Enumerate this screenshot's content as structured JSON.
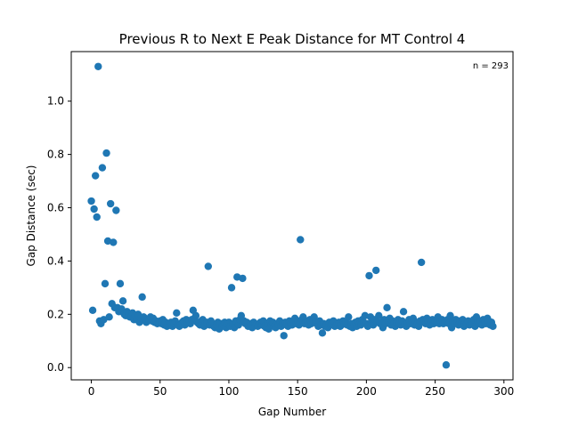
{
  "chart_data": {
    "type": "scatter",
    "title": "Previous R to Next E Peak Distance for MT Control 4",
    "xlabel": "Gap Number",
    "ylabel": "Gap Distance (sec)",
    "annotation": "n = 293",
    "xlim": [
      -14.6,
      306.6
    ],
    "ylim": [
      -0.046,
      1.186
    ],
    "xticks": [
      0,
      50,
      100,
      150,
      200,
      250,
      300
    ],
    "yticks": [
      0.0,
      0.2,
      0.4,
      0.6,
      0.8,
      1.0
    ],
    "xtick_labels": [
      "0",
      "50",
      "100",
      "150",
      "200",
      "250",
      "300"
    ],
    "ytick_labels": [
      "0.0",
      "0.2",
      "0.4",
      "0.6",
      "0.8",
      "1.0"
    ],
    "grid": false,
    "marker_color": "#1f77b4",
    "series": [
      {
        "points": [
          [
            0,
            0.625
          ],
          [
            1,
            0.215
          ],
          [
            2,
            0.595
          ],
          [
            3,
            0.72
          ],
          [
            4,
            0.565
          ],
          [
            5,
            1.13
          ],
          [
            6,
            0.175
          ],
          [
            7,
            0.165
          ],
          [
            8,
            0.75
          ],
          [
            9,
            0.18
          ],
          [
            10,
            0.315
          ],
          [
            11,
            0.805
          ],
          [
            12,
            0.475
          ],
          [
            13,
            0.19
          ],
          [
            14,
            0.615
          ],
          [
            15,
            0.24
          ],
          [
            16,
            0.47
          ],
          [
            17,
            0.225
          ],
          [
            18,
            0.59
          ],
          [
            19,
            0.225
          ],
          [
            20,
            0.21
          ],
          [
            21,
            0.315
          ],
          [
            22,
            0.22
          ],
          [
            23,
            0.25
          ],
          [
            24,
            0.2
          ],
          [
            25,
            0.195
          ],
          [
            26,
            0.21
          ],
          [
            27,
            0.2
          ],
          [
            28,
            0.19
          ],
          [
            29,
            0.19
          ],
          [
            30,
            0.205
          ],
          [
            31,
            0.18
          ],
          [
            32,
            0.195
          ],
          [
            33,
            0.18
          ],
          [
            34,
            0.2
          ],
          [
            35,
            0.17
          ],
          [
            36,
            0.185
          ],
          [
            37,
            0.265
          ],
          [
            38,
            0.19
          ],
          [
            39,
            0.185
          ],
          [
            40,
            0.17
          ],
          [
            41,
            0.18
          ],
          [
            42,
            0.18
          ],
          [
            43,
            0.19
          ],
          [
            44,
            0.175
          ],
          [
            45,
            0.185
          ],
          [
            46,
            0.17
          ],
          [
            47,
            0.175
          ],
          [
            48,
            0.165
          ],
          [
            49,
            0.17
          ],
          [
            50,
            0.175
          ],
          [
            51,
            0.165
          ],
          [
            52,
            0.18
          ],
          [
            53,
            0.16
          ],
          [
            54,
            0.17
          ],
          [
            55,
            0.155
          ],
          [
            56,
            0.165
          ],
          [
            57,
            0.16
          ],
          [
            58,
            0.17
          ],
          [
            59,
            0.155
          ],
          [
            60,
            0.165
          ],
          [
            61,
            0.175
          ],
          [
            62,
            0.205
          ],
          [
            63,
            0.16
          ],
          [
            64,
            0.155
          ],
          [
            65,
            0.165
          ],
          [
            66,
            0.17
          ],
          [
            67,
            0.175
          ],
          [
            68,
            0.16
          ],
          [
            69,
            0.18
          ],
          [
            70,
            0.17
          ],
          [
            71,
            0.175
          ],
          [
            72,
            0.165
          ],
          [
            73,
            0.18
          ],
          [
            74,
            0.215
          ],
          [
            75,
            0.185
          ],
          [
            76,
            0.195
          ],
          [
            77,
            0.17
          ],
          [
            78,
            0.165
          ],
          [
            79,
            0.16
          ],
          [
            80,
            0.175
          ],
          [
            81,
            0.18
          ],
          [
            82,
            0.155
          ],
          [
            83,
            0.165
          ],
          [
            84,
            0.17
          ],
          [
            85,
            0.38
          ],
          [
            86,
            0.16
          ],
          [
            87,
            0.175
          ],
          [
            88,
            0.165
          ],
          [
            89,
            0.155
          ],
          [
            90,
            0.15
          ],
          [
            91,
            0.16
          ],
          [
            92,
            0.17
          ],
          [
            93,
            0.145
          ],
          [
            94,
            0.165
          ],
          [
            95,
            0.155
          ],
          [
            96,
            0.16
          ],
          [
            97,
            0.17
          ],
          [
            98,
            0.15
          ],
          [
            99,
            0.165
          ],
          [
            100,
            0.17
          ],
          [
            101,
            0.155
          ],
          [
            102,
            0.3
          ],
          [
            103,
            0.165
          ],
          [
            104,
            0.15
          ],
          [
            105,
            0.175
          ],
          [
            106,
            0.34
          ],
          [
            107,
            0.16
          ],
          [
            108,
            0.18
          ],
          [
            109,
            0.195
          ],
          [
            110,
            0.335
          ],
          [
            111,
            0.175
          ],
          [
            112,
            0.165
          ],
          [
            113,
            0.17
          ],
          [
            114,
            0.155
          ],
          [
            115,
            0.16
          ],
          [
            116,
            0.165
          ],
          [
            117,
            0.15
          ],
          [
            118,
            0.17
          ],
          [
            119,
            0.165
          ],
          [
            120,
            0.16
          ],
          [
            121,
            0.155
          ],
          [
            122,
            0.165
          ],
          [
            123,
            0.17
          ],
          [
            124,
            0.16
          ],
          [
            125,
            0.175
          ],
          [
            126,
            0.155
          ],
          [
            127,
            0.15
          ],
          [
            128,
            0.165
          ],
          [
            129,
            0.145
          ],
          [
            130,
            0.175
          ],
          [
            131,
            0.16
          ],
          [
            132,
            0.17
          ],
          [
            133,
            0.155
          ],
          [
            134,
            0.15
          ],
          [
            135,
            0.165
          ],
          [
            136,
            0.16
          ],
          [
            137,
            0.175
          ],
          [
            138,
            0.155
          ],
          [
            139,
            0.165
          ],
          [
            140,
            0.12
          ],
          [
            141,
            0.17
          ],
          [
            142,
            0.16
          ],
          [
            143,
            0.155
          ],
          [
            144,
            0.175
          ],
          [
            145,
            0.165
          ],
          [
            146,
            0.16
          ],
          [
            147,
            0.17
          ],
          [
            148,
            0.185
          ],
          [
            149,
            0.165
          ],
          [
            150,
            0.175
          ],
          [
            151,
            0.16
          ],
          [
            152,
            0.48
          ],
          [
            153,
            0.18
          ],
          [
            154,
            0.19
          ],
          [
            155,
            0.165
          ],
          [
            156,
            0.17
          ],
          [
            157,
            0.175
          ],
          [
            158,
            0.16
          ],
          [
            159,
            0.18
          ],
          [
            160,
            0.165
          ],
          [
            161,
            0.175
          ],
          [
            162,
            0.19
          ],
          [
            163,
            0.17
          ],
          [
            164,
            0.165
          ],
          [
            165,
            0.155
          ],
          [
            166,
            0.175
          ],
          [
            167,
            0.16
          ],
          [
            168,
            0.13
          ],
          [
            169,
            0.165
          ],
          [
            170,
            0.155
          ],
          [
            171,
            0.16
          ],
          [
            172,
            0.15
          ],
          [
            173,
            0.17
          ],
          [
            174,
            0.16
          ],
          [
            175,
            0.165
          ],
          [
            176,
            0.175
          ],
          [
            177,
            0.155
          ],
          [
            178,
            0.16
          ],
          [
            179,
            0.165
          ],
          [
            180,
            0.17
          ],
          [
            181,
            0.155
          ],
          [
            182,
            0.16
          ],
          [
            183,
            0.175
          ],
          [
            184,
            0.165
          ],
          [
            185,
            0.17
          ],
          [
            186,
            0.16
          ],
          [
            187,
            0.19
          ],
          [
            188,
            0.155
          ],
          [
            189,
            0.165
          ],
          [
            190,
            0.15
          ],
          [
            191,
            0.16
          ],
          [
            192,
            0.17
          ],
          [
            193,
            0.155
          ],
          [
            194,
            0.175
          ],
          [
            195,
            0.165
          ],
          [
            196,
            0.16
          ],
          [
            197,
            0.18
          ],
          [
            198,
            0.17
          ],
          [
            199,
            0.195
          ],
          [
            200,
            0.165
          ],
          [
            201,
            0.155
          ],
          [
            202,
            0.345
          ],
          [
            203,
            0.19
          ],
          [
            204,
            0.175
          ],
          [
            205,
            0.16
          ],
          [
            206,
            0.18
          ],
          [
            207,
            0.365
          ],
          [
            208,
            0.17
          ],
          [
            209,
            0.195
          ],
          [
            210,
            0.165
          ],
          [
            211,
            0.17
          ],
          [
            212,
            0.15
          ],
          [
            213,
            0.18
          ],
          [
            214,
            0.165
          ],
          [
            215,
            0.225
          ],
          [
            216,
            0.17
          ],
          [
            217,
            0.185
          ],
          [
            218,
            0.16
          ],
          [
            219,
            0.175
          ],
          [
            220,
            0.165
          ],
          [
            221,
            0.155
          ],
          [
            222,
            0.17
          ],
          [
            223,
            0.18
          ],
          [
            224,
            0.165
          ],
          [
            225,
            0.16
          ],
          [
            226,
            0.175
          ],
          [
            227,
            0.21
          ],
          [
            228,
            0.165
          ],
          [
            229,
            0.155
          ],
          [
            230,
            0.17
          ],
          [
            231,
            0.18
          ],
          [
            232,
            0.165
          ],
          [
            233,
            0.175
          ],
          [
            234,
            0.185
          ],
          [
            235,
            0.16
          ],
          [
            236,
            0.17
          ],
          [
            237,
            0.165
          ],
          [
            238,
            0.155
          ],
          [
            239,
            0.175
          ],
          [
            240,
            0.395
          ],
          [
            241,
            0.18
          ],
          [
            242,
            0.17
          ],
          [
            243,
            0.165
          ],
          [
            244,
            0.185
          ],
          [
            245,
            0.175
          ],
          [
            246,
            0.16
          ],
          [
            247,
            0.17
          ],
          [
            248,
            0.18
          ],
          [
            249,
            0.165
          ],
          [
            250,
            0.175
          ],
          [
            251,
            0.17
          ],
          [
            252,
            0.19
          ],
          [
            253,
            0.165
          ],
          [
            254,
            0.175
          ],
          [
            255,
            0.18
          ],
          [
            256,
            0.165
          ],
          [
            257,
            0.17
          ],
          [
            258,
            0.01
          ],
          [
            259,
            0.18
          ],
          [
            260,
            0.165
          ],
          [
            261,
            0.195
          ],
          [
            262,
            0.15
          ],
          [
            263,
            0.175
          ],
          [
            264,
            0.165
          ],
          [
            265,
            0.18
          ],
          [
            266,
            0.17
          ],
          [
            267,
            0.16
          ],
          [
            268,
            0.175
          ],
          [
            269,
            0.165
          ],
          [
            270,
            0.18
          ],
          [
            271,
            0.155
          ],
          [
            272,
            0.17
          ],
          [
            273,
            0.165
          ],
          [
            274,
            0.175
          ],
          [
            275,
            0.16
          ],
          [
            276,
            0.17
          ],
          [
            277,
            0.165
          ],
          [
            278,
            0.18
          ],
          [
            279,
            0.155
          ],
          [
            280,
            0.19
          ],
          [
            281,
            0.17
          ],
          [
            282,
            0.165
          ],
          [
            283,
            0.175
          ],
          [
            284,
            0.16
          ],
          [
            285,
            0.18
          ],
          [
            286,
            0.17
          ],
          [
            287,
            0.165
          ],
          [
            288,
            0.185
          ],
          [
            289,
            0.175
          ],
          [
            290,
            0.16
          ],
          [
            291,
            0.17
          ],
          [
            292,
            0.155
          ]
        ]
      }
    ]
  }
}
